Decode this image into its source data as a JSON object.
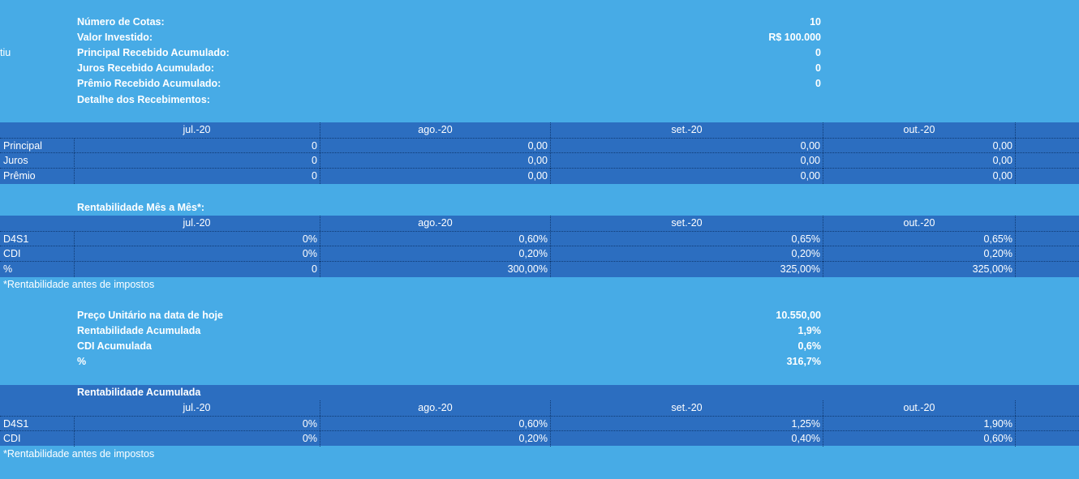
{
  "edge_text": "tiu",
  "summary": [
    {
      "label": "Número de Cotas:",
      "value": "10"
    },
    {
      "label": "Valor Investido:",
      "value": "R$ 100.000"
    },
    {
      "label": "Principal Recebido Acumulado:",
      "value": "0"
    },
    {
      "label": "Juros Recebido Acumulado:",
      "value": "0"
    },
    {
      "label": "Prêmio Recebido Acumulado:",
      "value": "0"
    },
    {
      "label": "Detalhe dos Recebimentos:",
      "value": ""
    }
  ],
  "months": [
    "jul.-20",
    "ago.-20",
    "set.-20",
    "out.-20"
  ],
  "receipts": {
    "rows": [
      {
        "label": "Principal",
        "values": [
          "0",
          "0,00",
          "0,00",
          "0,00"
        ]
      },
      {
        "label": "Juros",
        "values": [
          "0",
          "0,00",
          "0,00",
          "0,00"
        ]
      },
      {
        "label": "Prêmio",
        "values": [
          "0",
          "0,00",
          "0,00",
          "0,00"
        ]
      }
    ]
  },
  "monthly": {
    "title": "Rentabilidade Mês a Mês*:",
    "rows": [
      {
        "label": "D4S1",
        "values": [
          "0%",
          "0,60%",
          "0,65%",
          "0,65%"
        ]
      },
      {
        "label": "CDI",
        "values": [
          "0%",
          "0,20%",
          "0,20%",
          "0,20%"
        ]
      },
      {
        "label": "%",
        "values": [
          "0",
          "300,00%",
          "325,00%",
          "325,00%"
        ]
      }
    ],
    "footnote": "*Rentabilidade antes de impostos"
  },
  "today": [
    {
      "label": "Preço Unitário na data de hoje",
      "value": "10.550,00"
    },
    {
      "label": "Rentabilidade Acumulada",
      "value": "1,9%"
    },
    {
      "label": "CDI Acumulada",
      "value": "0,6%"
    },
    {
      "label": "%",
      "value": "316,7%"
    }
  ],
  "accumulated": {
    "title": "Rentabilidade Acumulada",
    "rows": [
      {
        "label": "D4S1",
        "values": [
          "0%",
          "0,60%",
          "1,25%",
          "1,90%"
        ]
      },
      {
        "label": "CDI",
        "values": [
          "0%",
          "0,20%",
          "0,40%",
          "0,60%"
        ]
      }
    ],
    "footnote": "*Rentabilidade antes de impostos"
  }
}
